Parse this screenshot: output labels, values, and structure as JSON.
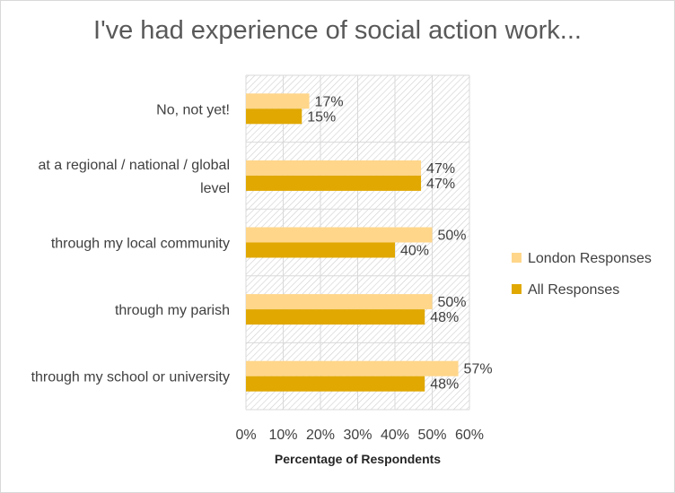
{
  "chart_data": {
    "type": "bar",
    "orientation": "horizontal",
    "title": "I've had experience of social action work...",
    "xlabel": "Percentage of Respondents",
    "ylabel": "",
    "xlim": [
      0,
      60
    ],
    "x_ticks": [
      "0%",
      "10%",
      "20%",
      "30%",
      "40%",
      "50%",
      "60%"
    ],
    "categories": [
      [
        "No, not yet!"
      ],
      [
        "at a regional / national / global",
        "level"
      ],
      [
        "through my local community"
      ],
      [
        "through my parish"
      ],
      [
        "through my school or university"
      ]
    ],
    "series": [
      {
        "name": "London Responses",
        "color": "#FFD68A",
        "values": [
          17,
          47,
          50,
          50,
          57
        ],
        "labels": [
          "17%",
          "47%",
          "50%",
          "50%",
          "57%"
        ]
      },
      {
        "name": "All Responses",
        "color": "#E0A800",
        "values": [
          15,
          47,
          40,
          48,
          48
        ],
        "labels": [
          "15%",
          "47%",
          "40%",
          "48%",
          "48%"
        ]
      }
    ],
    "legend_position": "right",
    "grid": true
  }
}
